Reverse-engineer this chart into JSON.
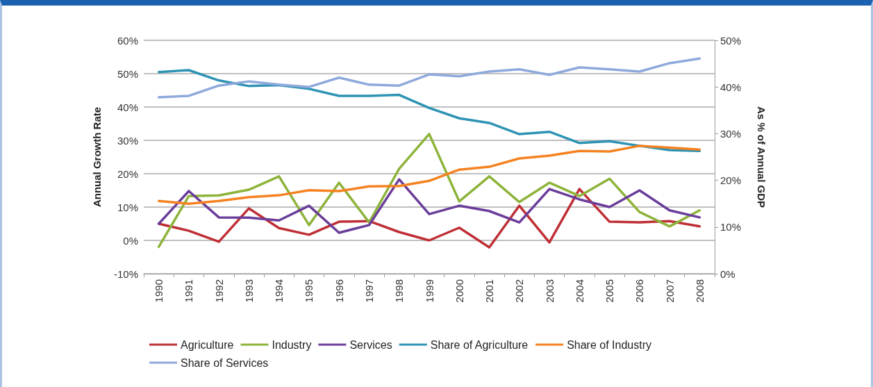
{
  "chart_data": {
    "type": "line",
    "ylabel": "Annual Growth Rate",
    "y2label": "As % of Annual GDP",
    "categories": [
      "1990",
      "1991",
      "1992",
      "1993",
      "1994",
      "1995",
      "1996",
      "1997",
      "1998",
      "1999",
      "2000",
      "2001",
      "2002",
      "2003",
      "2004",
      "2005",
      "2006",
      "2007",
      "2008"
    ],
    "series": [
      {
        "name": "Agriculture",
        "color": "#be2f35",
        "values": [
          5.0,
          2.9,
          -0.4,
          9.6,
          3.7,
          1.7,
          5.6,
          5.8,
          2.5,
          0.0,
          3.8,
          -2.1,
          10.4,
          -0.6,
          15.4,
          5.6,
          5.4,
          5.8,
          4.2
        ]
      },
      {
        "name": "Industry",
        "color": "#8db33a",
        "values": [
          -1.9,
          13.3,
          13.5,
          15.2,
          19.2,
          4.6,
          17.3,
          5.4,
          21.5,
          31.9,
          11.7,
          19.2,
          11.5,
          17.3,
          13.3,
          18.5,
          8.5,
          4.2,
          9.0
        ]
      },
      {
        "name": "Services",
        "color": "#6a3d9a",
        "values": [
          5.0,
          14.8,
          6.9,
          6.8,
          6.0,
          10.4,
          2.3,
          4.6,
          18.3,
          7.9,
          10.4,
          8.8,
          5.4,
          15.4,
          12.3,
          10.0,
          15.0,
          9.0,
          6.9
        ]
      },
      {
        "name": "Share of Agriculture",
        "color": "#2e93b4",
        "axis": "y2",
        "values": [
          43.2,
          43.6,
          41.4,
          40.2,
          40.4,
          39.6,
          38.1,
          38.1,
          38.3,
          35.5,
          33.3,
          32.3,
          29.9,
          30.4,
          28.0,
          28.4,
          27.4,
          26.5,
          26.3
        ]
      },
      {
        "name": "Share of Industry",
        "color": "#f58220",
        "axis": "y2",
        "values": [
          15.6,
          15.0,
          15.6,
          16.4,
          16.8,
          17.9,
          17.7,
          18.7,
          18.8,
          19.9,
          22.3,
          22.9,
          24.7,
          25.3,
          26.3,
          26.2,
          27.4,
          27.0,
          26.6
        ]
      },
      {
        "name": "Share of Services",
        "color": "#8ea9db",
        "axis": "y2",
        "values": [
          37.8,
          38.1,
          40.3,
          41.2,
          40.5,
          40.0,
          42.0,
          40.5,
          40.3,
          42.7,
          42.3,
          43.3,
          43.8,
          42.6,
          44.2,
          43.8,
          43.3,
          45.1,
          46.1
        ]
      }
    ],
    "ylim": [
      -10,
      60
    ],
    "yticks": [
      {
        "value": -10,
        "label": "-10%"
      },
      {
        "value": 0,
        "label": "0%"
      },
      {
        "value": 10,
        "label": "10%"
      },
      {
        "value": 20,
        "label": "20%"
      },
      {
        "value": 30,
        "label": "30%"
      },
      {
        "value": 40,
        "label": "40%"
      },
      {
        "value": 50,
        "label": "50%"
      },
      {
        "value": 60,
        "label": "60%"
      }
    ],
    "y2lim": [
      0,
      50
    ],
    "y2ticks": [
      {
        "value": 0,
        "label": "0%"
      },
      {
        "value": 10,
        "label": "10%"
      },
      {
        "value": 20,
        "label": "20%"
      },
      {
        "value": 30,
        "label": "30%"
      },
      {
        "value": 40,
        "label": "40%"
      },
      {
        "value": 50,
        "label": "50%"
      }
    ],
    "grid": "y",
    "legend": "bottom",
    "marker": "none",
    "line_style": "solid"
  }
}
